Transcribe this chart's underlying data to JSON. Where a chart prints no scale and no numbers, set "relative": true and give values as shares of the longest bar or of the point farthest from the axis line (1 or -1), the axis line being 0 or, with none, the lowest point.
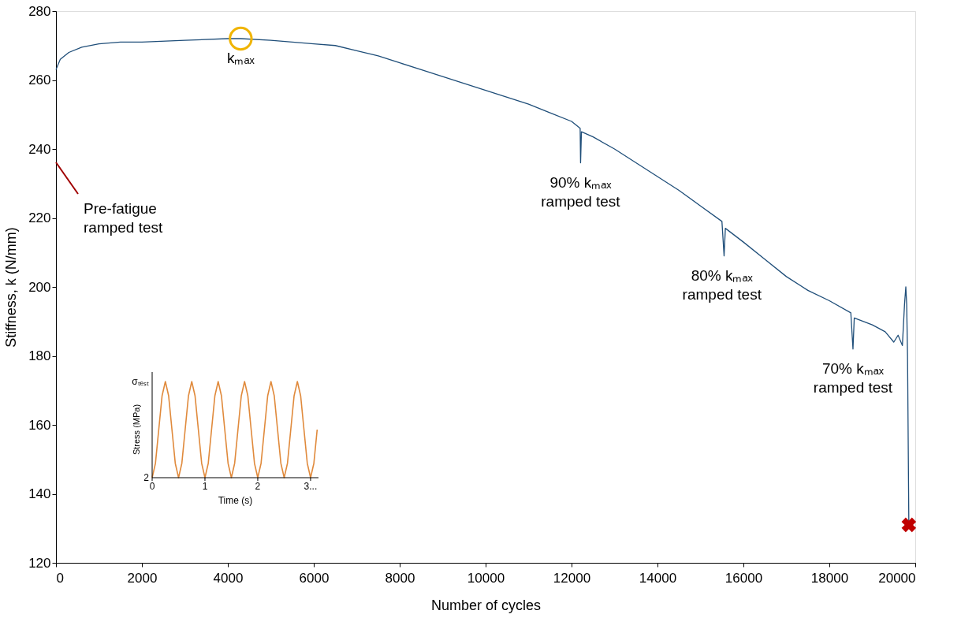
{
  "chart_data": [
    {
      "type": "line",
      "xlabel": "Number of cycles",
      "ylabel": "Stiffness, k (N/mm)",
      "xlim": [
        0,
        20000
      ],
      "ylim": [
        120,
        280
      ],
      "xticks": [
        0,
        2000,
        4000,
        6000,
        8000,
        10000,
        12000,
        14000,
        16000,
        18000,
        20000
      ],
      "yticks": [
        120,
        140,
        160,
        180,
        200,
        220,
        240,
        260,
        280
      ],
      "grid": false,
      "series": [
        {
          "color": "#1f4e79",
          "x": [
            0,
            100,
            300,
            600,
            1000,
            1500,
            2000,
            3000,
            4000,
            4300,
            5000,
            6000,
            6500,
            7000,
            7500,
            8000,
            8500,
            9000,
            9500,
            10000,
            10500,
            11000,
            11500,
            12000,
            12200,
            12210,
            12230,
            12500,
            13000,
            13500,
            14000,
            14500,
            15000,
            15500,
            15550,
            15580,
            16000,
            16500,
            17000,
            17500,
            18000,
            18500,
            18550,
            18580,
            19000,
            19300,
            19500,
            19600,
            19700,
            19750,
            19780,
            19800,
            19820,
            19850
          ],
          "values": [
            263,
            266,
            268,
            269.5,
            270.5,
            271,
            271,
            271.5,
            272,
            272,
            271.5,
            270.5,
            270,
            268.5,
            267,
            265,
            263,
            261,
            259,
            257,
            255,
            253,
            250.5,
            248,
            246,
            236,
            245,
            243.5,
            240,
            236,
            232,
            228,
            223.5,
            219,
            209,
            217,
            213,
            208,
            203,
            199,
            196,
            192.5,
            182,
            191,
            189,
            187,
            184,
            186,
            183,
            195,
            200,
            195,
            180,
            132
          ]
        },
        {
          "type": "scatter",
          "marker": "circle",
          "color": "#f0b400",
          "x": [
            4300
          ],
          "values": [
            272
          ]
        },
        {
          "type": "scatter",
          "marker": "cross",
          "color": "#c00000",
          "x": [
            19850
          ],
          "values": [
            131
          ]
        }
      ],
      "annotations": [
        {
          "text": "kₘₐₓ",
          "x": 4300,
          "y": 272
        },
        {
          "text": "90% kₘₐₓ\nramped test",
          "x": 12210,
          "y": 236
        },
        {
          "text": "80% kₘₐₓ\nramped test",
          "x": 15500,
          "y": 209
        },
        {
          "text": "70% kₘₐₓ\nramped test",
          "x": 18550,
          "y": 182
        },
        "Pre-fatigue\nramped test"
      ]
    },
    {
      "type": "line",
      "xlabel": "Time (s)",
      "ylabel": "Stress (MPa)",
      "relative": true,
      "xlim": [
        0,
        3.15
      ],
      "xticks": [
        0,
        1,
        2,
        {
          "value": 3,
          "label": "3..."
        }
      ],
      "series": [
        {
          "color": "#e08a3c",
          "x": [
            0,
            0.0625,
            0.125,
            0.1875,
            0.25,
            0.3125,
            0.375,
            0.4375,
            0.5,
            0.5625,
            0.625,
            0.6875,
            0.75,
            0.8125,
            0.875,
            0.9375,
            1,
            1.0625,
            1.125,
            1.1875,
            1.25,
            1.3125,
            1.375,
            1.4375,
            1.5,
            1.5625,
            1.625,
            1.6875,
            1.75,
            1.8125,
            1.875,
            1.9375,
            2,
            2.0625,
            2.125,
            2.1875,
            2.25,
            2.3125,
            2.375,
            2.4375,
            2.5,
            2.5625,
            2.625,
            2.6875,
            2.75,
            2.8125,
            2.875,
            2.9375,
            3,
            3.0625,
            3.125
          ],
          "values": [
            0,
            0.15,
            0.5,
            0.85,
            1,
            0.85,
            0.5,
            0.15,
            0,
            0.15,
            0.5,
            0.85,
            1,
            0.85,
            0.5,
            0.15,
            0,
            0.15,
            0.5,
            0.85,
            1,
            0.85,
            0.5,
            0.15,
            0,
            0.15,
            0.5,
            0.85,
            1,
            0.85,
            0.5,
            0.15,
            0,
            0.15,
            0.5,
            0.85,
            1,
            0.85,
            0.5,
            0.15,
            0,
            0.15,
            0.5,
            0.85,
            1,
            0.85,
            0.5,
            0.15,
            0,
            0.15,
            0.5
          ]
        }
      ],
      "annotations": [
        "σₜₑₛₜ",
        "2"
      ]
    }
  ]
}
